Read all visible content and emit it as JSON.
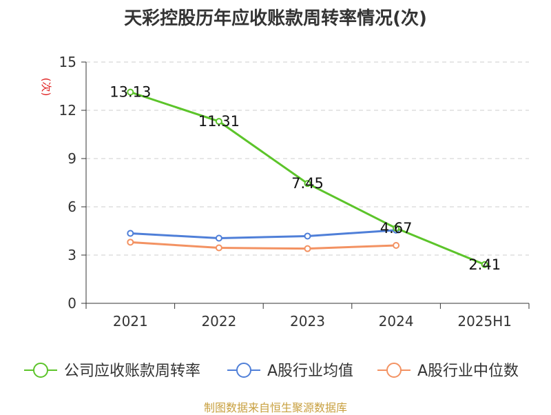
{
  "chart_data": {
    "type": "line",
    "title": "天彩控股历年应收账款周转率情况(次)",
    "ylabel": "(次)",
    "xlabel": "",
    "categories": [
      "2021",
      "2022",
      "2023",
      "2024",
      "2025H1"
    ],
    "ylim": [
      0,
      15
    ],
    "yticks": [
      0,
      3,
      6,
      9,
      12,
      15
    ],
    "grid": true,
    "legend_position": "bottom",
    "series": [
      {
        "name": "公司应收账款周转率",
        "color": "#5cc42a",
        "values": [
          13.13,
          11.31,
          7.45,
          4.67,
          2.41
        ],
        "labels": [
          "13.13",
          "11.31",
          "7.45",
          "4.67",
          "2.41"
        ]
      },
      {
        "name": "A股行业均值",
        "color": "#4f7fd8",
        "values": [
          4.35,
          4.05,
          4.18,
          4.55,
          null
        ]
      },
      {
        "name": "A股行业中位数",
        "color": "#f39262",
        "values": [
          3.8,
          3.45,
          3.4,
          3.6,
          null
        ]
      }
    ]
  },
  "source": "制图数据来自恒生聚源数据库"
}
